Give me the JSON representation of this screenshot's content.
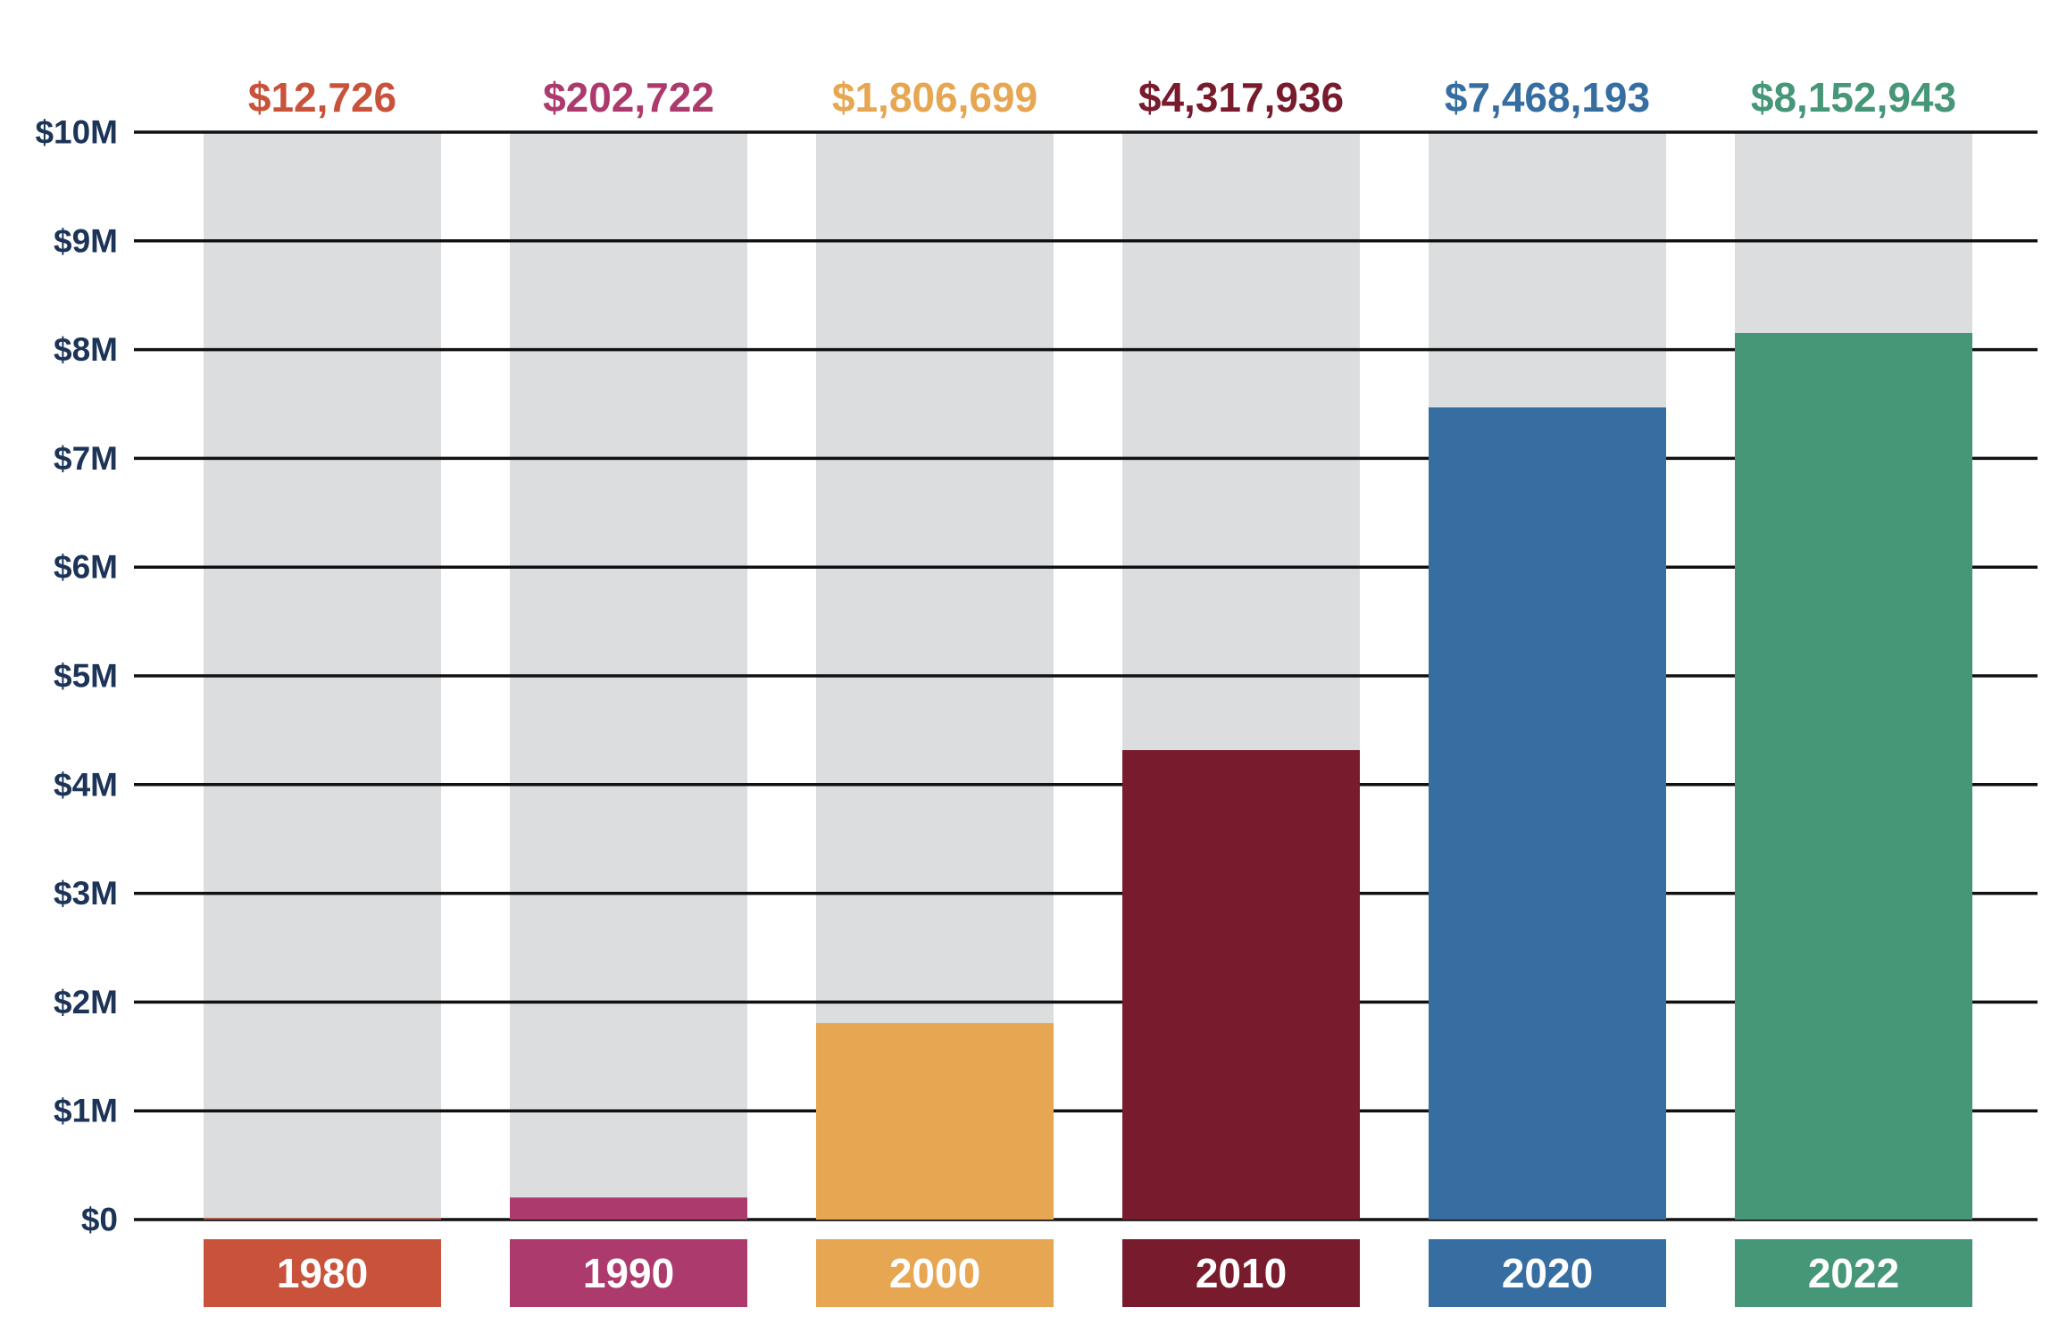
{
  "chart_data": {
    "type": "bar",
    "title": "",
    "xlabel": "",
    "ylabel": "",
    "ylim": [
      0,
      10000000
    ],
    "grid": true,
    "y_ticks": [
      {
        "value": 0,
        "label": "$0"
      },
      {
        "value": 1000000,
        "label": "$1M"
      },
      {
        "value": 2000000,
        "label": "$2M"
      },
      {
        "value": 3000000,
        "label": "$3M"
      },
      {
        "value": 4000000,
        "label": "$4M"
      },
      {
        "value": 5000000,
        "label": "$5M"
      },
      {
        "value": 6000000,
        "label": "$6M"
      },
      {
        "value": 7000000,
        "label": "$7M"
      },
      {
        "value": 8000000,
        "label": "$8M"
      },
      {
        "value": 9000000,
        "label": "$9M"
      },
      {
        "value": 10000000,
        "label": "$10M"
      }
    ],
    "categories": [
      "1980",
      "1990",
      "2000",
      "2010",
      "2020",
      "2022"
    ],
    "values": [
      12726,
      202722,
      1806699,
      4317936,
      7468193,
      8152943
    ],
    "value_labels": [
      "$12,726",
      "$202,722",
      "$1,806,699",
      "$4,317,936",
      "$7,468,193",
      "$8,152,943"
    ],
    "colors": [
      "#C9523B",
      "#AD3A6C",
      "#E6A652",
      "#771B2D",
      "#366EA2",
      "#469678"
    ],
    "track_color": "#DCDDDF",
    "axis_label_color": "#1C3458",
    "gridline_color": "#111111"
  }
}
